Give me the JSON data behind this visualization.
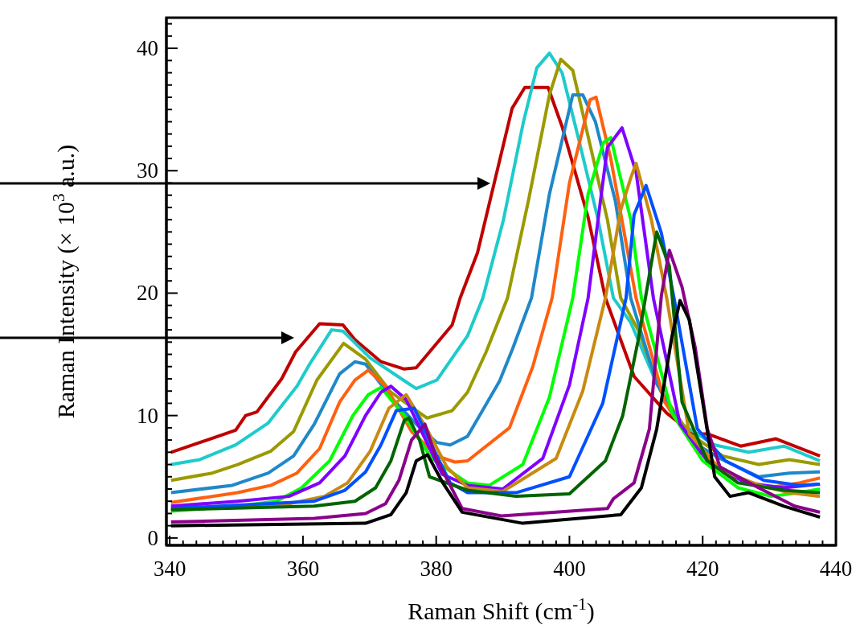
{
  "chart_data": {
    "type": "line",
    "xlabel": "Raman Shift (cm$^{-1}$)",
    "ylabel": "Raman Intensity (× 10$^{3}$ a.u.)",
    "xlim": [
      339.5,
      440
    ],
    "ylim": [
      -0.6,
      42.5
    ],
    "xticks": [
      340,
      {
        "value": 342,
        "label": null
      },
      {
        "value": 344,
        "label": null
      },
      {
        "value": 346,
        "label": null
      },
      {
        "value": 348,
        "label": null
      },
      {
        "value": 350,
        "label": null
      },
      {
        "value": 352,
        "label": null
      },
      {
        "value": 354,
        "label": null
      },
      {
        "value": 356,
        "label": null
      },
      {
        "value": 358,
        "label": null
      },
      360,
      {
        "value": 362,
        "label": null
      },
      {
        "value": 364,
        "label": null
      },
      {
        "value": 366,
        "label": null
      },
      {
        "value": 368,
        "label": null
      },
      {
        "value": 370,
        "label": null
      },
      {
        "value": 372,
        "label": null
      },
      {
        "value": 374,
        "label": null
      },
      {
        "value": 376,
        "label": null
      },
      {
        "value": 378,
        "label": null
      },
      380,
      {
        "value": 382,
        "label": null
      },
      {
        "value": 384,
        "label": null
      },
      {
        "value": 386,
        "label": null
      },
      {
        "value": 388,
        "label": null
      },
      {
        "value": 390,
        "label": null
      },
      {
        "value": 392,
        "label": null
      },
      {
        "value": 394,
        "label": null
      },
      {
        "value": 396,
        "label": null
      },
      {
        "value": 398,
        "label": null
      },
      400,
      {
        "value": 402,
        "label": null
      },
      {
        "value": 404,
        "label": null
      },
      {
        "value": 406,
        "label": null
      },
      {
        "value": 408,
        "label": null
      },
      {
        "value": 410,
        "label": null
      },
      {
        "value": 412,
        "label": null
      },
      {
        "value": 414,
        "label": null
      },
      {
        "value": 416,
        "label": null
      },
      {
        "value": 418,
        "label": null
      },
      420,
      {
        "value": 422,
        "label": null
      },
      {
        "value": 424,
        "label": null
      },
      {
        "value": 426,
        "label": null
      },
      {
        "value": 428,
        "label": null
      },
      {
        "value": 430,
        "label": null
      },
      {
        "value": 432,
        "label": null
      },
      {
        "value": 434,
        "label": null
      },
      {
        "value": 436,
        "label": null
      },
      {
        "value": 438,
        "label": null
      },
      440
    ],
    "yticks": [
      0,
      {
        "value": 1,
        "label": null
      },
      {
        "value": 2,
        "label": null
      },
      {
        "value": 3,
        "label": null
      },
      {
        "value": 4,
        "label": null
      },
      {
        "value": 5,
        "label": null
      },
      {
        "value": 6,
        "label": null
      },
      {
        "value": 7,
        "label": null
      },
      {
        "value": 8,
        "label": null
      },
      {
        "value": 9,
        "label": null
      },
      10,
      {
        "value": 11,
        "label": null
      },
      {
        "value": 12,
        "label": null
      },
      {
        "value": 13,
        "label": null
      },
      {
        "value": 14,
        "label": null
      },
      {
        "value": 15,
        "label": null
      },
      {
        "value": 16,
        "label": null
      },
      {
        "value": 17,
        "label": null
      },
      {
        "value": 18,
        "label": null
      },
      {
        "value": 19,
        "label": null
      },
      20,
      {
        "value": 21,
        "label": null
      },
      {
        "value": 22,
        "label": null
      },
      {
        "value": 23,
        "label": null
      },
      {
        "value": 24,
        "label": null
      },
      {
        "value": 25,
        "label": null
      },
      {
        "value": 26,
        "label": null
      },
      {
        "value": 27,
        "label": null
      },
      {
        "value": 28,
        "label": null
      },
      {
        "value": 29,
        "label": null
      },
      30,
      {
        "value": 31,
        "label": null
      },
      {
        "value": 32,
        "label": null
      },
      {
        "value": 33,
        "label": null
      },
      {
        "value": 34,
        "label": null
      },
      {
        "value": 35,
        "label": null
      },
      {
        "value": 36,
        "label": null
      },
      {
        "value": 37,
        "label": null
      },
      {
        "value": 38,
        "label": null
      },
      {
        "value": 39,
        "label": null
      },
      40,
      {
        "value": 41,
        "label": null
      },
      {
        "value": 42,
        "label": null
      }
    ],
    "grid": false,
    "marker": "none",
    "line_style": "solid",
    "series": [
      {
        "color": "#c00000",
        "x": [
          340.2,
          349.9,
          351.4,
          353.1,
          356.8,
          358.9,
          362.5,
          366,
          367.8,
          371.7,
          375.2,
          377,
          382.4,
          383.6,
          386.2,
          391.4,
          393.3,
          396.8,
          398.9,
          402.8,
          405.4,
          409.7,
          414.6,
          418.6,
          420.7,
          425.7,
          431,
          437.6
        ],
        "values": [
          7.0,
          8.8,
          10.0,
          10.3,
          13.0,
          15.2,
          17.5,
          17.4,
          16.2,
          14.4,
          13.8,
          13.9,
          17.4,
          19.6,
          23.3,
          35.1,
          36.8,
          36.8,
          33.6,
          26.2,
          19.6,
          13.2,
          10.2,
          8.5,
          8.5,
          7.5,
          8.1,
          6.7
        ]
      },
      {
        "color": "#1ecbcb",
        "x": [
          340.2,
          344.5,
          349.9,
          354.8,
          359.1,
          361,
          364.3,
          366,
          370.1,
          377,
          380.1,
          384.7,
          387,
          390.1,
          393.1,
          395.1,
          397,
          398.9,
          401.6,
          404.3,
          406.6,
          409.2,
          413.1,
          416.9,
          421.8,
          426.9,
          432.2,
          437.6
        ],
        "values": [
          6.0,
          6.4,
          7.6,
          9.4,
          12.4,
          14.2,
          17.0,
          16.9,
          14.7,
          12.2,
          12.9,
          16.5,
          19.6,
          26.0,
          34.0,
          38.4,
          39.6,
          38.0,
          32.1,
          26.0,
          19.6,
          17.6,
          12.6,
          9.3,
          7.6,
          7.0,
          7.5,
          6.3
        ]
      },
      {
        "color": "#9a9a00",
        "x": [
          340.2,
          346.4,
          350.2,
          355.2,
          358.6,
          362.1,
          366.1,
          369.4,
          373.2,
          378.6,
          382.4,
          384.7,
          387.5,
          390.7,
          393.9,
          397,
          398.7,
          400.5,
          403.1,
          405.7,
          407.7,
          410.3,
          413.8,
          418,
          423,
          428.4,
          433,
          437.6
        ],
        "values": [
          4.7,
          5.3,
          6.0,
          7.1,
          8.7,
          12.9,
          15.9,
          14.6,
          11.9,
          9.8,
          10.4,
          11.9,
          15.2,
          19.6,
          27.7,
          36.2,
          39.1,
          38.2,
          32.1,
          26.0,
          19.6,
          17.0,
          11.9,
          8.5,
          6.7,
          6.0,
          6.4,
          6.0
        ]
      },
      {
        "color": "#1f88c8",
        "x": [
          340.2,
          349.4,
          354.8,
          358.6,
          361.7,
          365.5,
          367.8,
          369.4,
          373.2,
          377,
          380.1,
          382.1,
          384.7,
          389.5,
          391.5,
          394.3,
          397,
          400.5,
          402,
          403.9,
          406.9,
          409.2,
          413.1,
          418,
          422.6,
          428.4,
          433,
          437.6
        ],
        "values": [
          3.7,
          4.3,
          5.3,
          6.7,
          9.3,
          13.4,
          14.4,
          14.2,
          11.5,
          9.3,
          7.8,
          7.6,
          8.3,
          12.8,
          15.5,
          19.6,
          28.1,
          36.2,
          36.2,
          34.0,
          27.5,
          19.6,
          12.6,
          8.0,
          6.5,
          5.0,
          5.3,
          5.4
        ]
      },
      {
        "color": "#ff6010",
        "x": [
          340.2,
          350.2,
          355.2,
          359.1,
          362.5,
          365.5,
          367.8,
          369.8,
          372.4,
          376.3,
          380.1,
          382.8,
          384.7,
          391,
          394.5,
          397.4,
          400,
          403.1,
          404,
          406.2,
          410,
          414.3,
          418.9,
          424.6,
          429.9,
          434.5,
          437.6
        ],
        "values": [
          2.9,
          3.7,
          4.3,
          5.3,
          7.3,
          11.1,
          12.9,
          13.7,
          12.4,
          8.7,
          6.7,
          6.2,
          6.3,
          9.0,
          14.0,
          19.6,
          29.0,
          35.8,
          36.0,
          31.0,
          19.6,
          11.1,
          7.3,
          5.0,
          4.1,
          4.5,
          4.9
        ]
      },
      {
        "color": "#00ff00",
        "x": [
          340.2,
          350.2,
          356,
          359.8,
          364,
          367.5,
          369.8,
          371.7,
          375.2,
          379.3,
          384.7,
          388,
          393,
          397,
          400.5,
          402.8,
          405.1,
          406.2,
          409.2,
          410.8,
          415.4,
          420,
          425.3,
          430.3,
          434.5,
          437.6
        ],
        "values": [
          2.2,
          2.6,
          3.0,
          4.1,
          6.3,
          10.0,
          11.7,
          12.3,
          10.0,
          6.5,
          4.5,
          4.3,
          6.0,
          11.5,
          19.6,
          28.1,
          32.3,
          32.7,
          26.0,
          19.6,
          10.2,
          6.3,
          4.1,
          3.4,
          3.7,
          4.0
        ]
      },
      {
        "color": "#7f00ff",
        "x": [
          340.2,
          350.2,
          357.9,
          362.5,
          366.3,
          369.4,
          371.7,
          373.2,
          375.5,
          377.8,
          380.9,
          384.7,
          390,
          396,
          400,
          402.8,
          404.6,
          405.7,
          407.9,
          410,
          412.6,
          416.6,
          420.7,
          426.4,
          432.2,
          437.6
        ],
        "values": [
          2.6,
          3.0,
          3.4,
          4.5,
          6.7,
          10.0,
          11.9,
          12.4,
          11.3,
          8.7,
          5.2,
          4.3,
          4.0,
          6.5,
          12.5,
          19.6,
          27.3,
          31.9,
          33.5,
          29.9,
          19.6,
          9.3,
          6.3,
          4.5,
          4.1,
          4.4
        ]
      },
      {
        "color": "#c88a10",
        "x": [
          340.2,
          357.9,
          363.2,
          366.7,
          370.1,
          372.9,
          375.5,
          378.6,
          381.6,
          384.7,
          390,
          398,
          402,
          405.4,
          407.7,
          409.2,
          410,
          412.3,
          414.6,
          418,
          422.6,
          428.4,
          433,
          437.6
        ],
        "values": [
          2.3,
          2.8,
          3.4,
          4.5,
          7.1,
          10.6,
          11.7,
          8.9,
          5.8,
          4.1,
          3.8,
          6.5,
          12.0,
          19.6,
          26.8,
          29.4,
          30.6,
          26.0,
          19.6,
          8.5,
          5.6,
          4.3,
          3.7,
          3.4
        ]
      },
      {
        "color": "#0050ff",
        "x": [
          340.2,
          361.7,
          366.3,
          369.4,
          371.7,
          374,
          376.7,
          379.3,
          382.1,
          384.7,
          392,
          400,
          405,
          408.5,
          409.7,
          411.5,
          413.8,
          415.7,
          419.2,
          423.4,
          429.2,
          434.5,
          437.6
        ],
        "values": [
          2.4,
          3.0,
          3.9,
          5.4,
          7.6,
          10.4,
          10.6,
          7.6,
          4.5,
          3.7,
          3.7,
          5.0,
          11.0,
          19.6,
          26.4,
          28.8,
          24.9,
          19.6,
          8.9,
          6.3,
          4.7,
          4.3,
          4.4
        ]
      },
      {
        "color": "#006400",
        "x": [
          340.2,
          361.7,
          367.8,
          370.9,
          373.2,
          375.2,
          375.9,
          377.5,
          379,
          384.7,
          392,
          400,
          405.4,
          408,
          410.3,
          413.1,
          415,
          416.9,
          420.7,
          425.3,
          432.2,
          437.6
        ],
        "values": [
          2.3,
          2.6,
          3.0,
          4.1,
          6.3,
          9.6,
          9.8,
          8.0,
          5.0,
          3.9,
          3.4,
          3.6,
          6.3,
          10.0,
          16.1,
          25.0,
          22.2,
          11.1,
          6.3,
          4.5,
          3.9,
          3.7
        ]
      },
      {
        "color": "#8b008b",
        "x": [
          340.2,
          361.7,
          369.4,
          372.4,
          374.4,
          376.3,
          378.3,
          380,
          383.9,
          389.8,
          405.7,
          406.6,
          409.7,
          412,
          413.8,
          415,
          416.9,
          418.9,
          420.7,
          422.6,
          428.4,
          433.8,
          437.6
        ],
        "values": [
          1.3,
          1.6,
          2.0,
          2.8,
          4.7,
          8.0,
          9.3,
          6.5,
          2.4,
          1.8,
          2.4,
          3.2,
          4.5,
          8.9,
          19.8,
          23.5,
          20.5,
          15.5,
          8.9,
          5.8,
          4.1,
          2.6,
          2.1
        ]
      },
      {
        "color": "#000000",
        "x": [
          340.2,
          369.4,
          373.2,
          375.5,
          377,
          378.7,
          381,
          383.9,
          393,
          407.7,
          410.8,
          413.1,
          415.4,
          416.6,
          418,
          420,
          421.8,
          424.1,
          426.9,
          432.2,
          437.6
        ],
        "values": [
          1.0,
          1.2,
          1.9,
          3.7,
          6.3,
          6.8,
          4.5,
          2.1,
          1.2,
          1.9,
          4.1,
          8.9,
          16.5,
          19.4,
          17.8,
          11.1,
          5.0,
          3.4,
          3.7,
          2.6,
          1.7
        ]
      }
    ]
  }
}
